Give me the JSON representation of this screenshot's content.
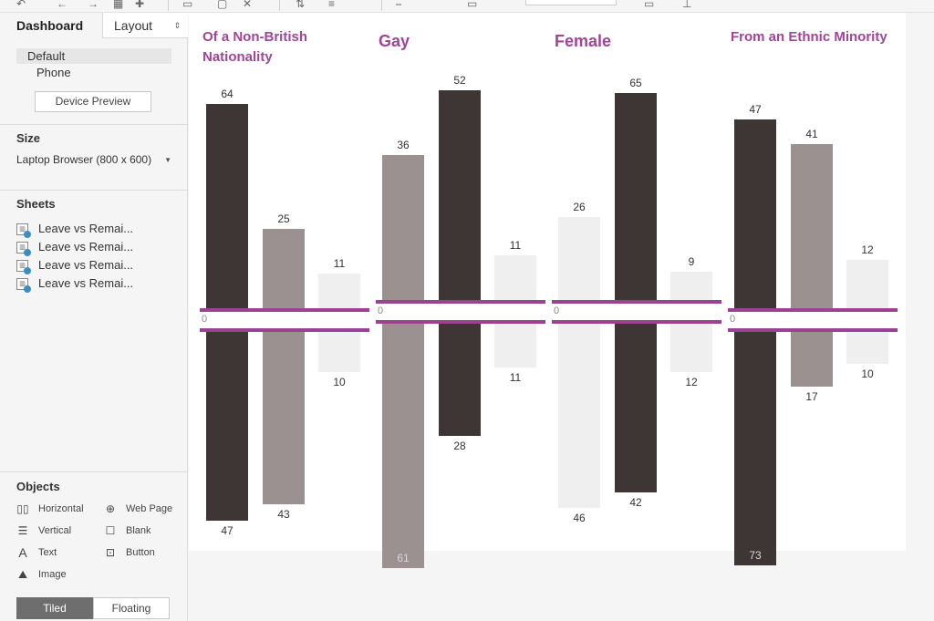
{
  "sidebar": {
    "tabs": {
      "dashboard": "Dashboard",
      "layout": "Layout"
    },
    "devices": {
      "default": "Default",
      "phone": "Phone",
      "preview_button": "Device Preview"
    },
    "size": {
      "title": "Size",
      "value": "Laptop Browser (800 x 600)"
    },
    "sheets": {
      "title": "Sheets",
      "items": [
        {
          "label": "Leave vs Remai..."
        },
        {
          "label": "Leave vs Remai..."
        },
        {
          "label": "Leave vs Remai..."
        },
        {
          "label": "Leave vs Remai..."
        }
      ]
    },
    "objects": {
      "title": "Objects",
      "items": [
        {
          "label": "Horizontal",
          "icon": "horizontal-container-icon"
        },
        {
          "label": "Web Page",
          "icon": "globe-icon"
        },
        {
          "label": "Vertical",
          "icon": "vertical-container-icon"
        },
        {
          "label": "Blank",
          "icon": "blank-icon"
        },
        {
          "label": "Text",
          "icon": "text-icon"
        },
        {
          "label": "Button",
          "icon": "button-icon"
        },
        {
          "label": "Image",
          "icon": "image-icon"
        }
      ]
    },
    "mode": {
      "tiled": "Tiled",
      "floating": "Floating"
    }
  },
  "colors": {
    "accent": "#9b4293",
    "title": "#a04597",
    "dark": "#3d3635",
    "mid": "#9a9190",
    "light": "#efefef"
  },
  "chart_data": [
    {
      "type": "bar",
      "title": "Of a Non-British Nationality",
      "zero_label": "0",
      "bars": [
        {
          "shade": "dark",
          "up": 64,
          "down": 47
        },
        {
          "shade": "mid",
          "up": 25,
          "down": 43
        },
        {
          "shade": "light",
          "up": 11,
          "down": 10
        }
      ]
    },
    {
      "type": "bar",
      "title": "Gay",
      "zero_label": "0",
      "bars": [
        {
          "shade": "mid",
          "up": 36,
          "down": 61
        },
        {
          "shade": "dark",
          "up": 52,
          "down": 28
        },
        {
          "shade": "light",
          "up": 11,
          "down": 11
        }
      ]
    },
    {
      "type": "bar",
      "title": "Female",
      "zero_label": "0",
      "bars": [
        {
          "shade": "light",
          "up": 26,
          "down": 46
        },
        {
          "shade": "dark",
          "up": 65,
          "down": 42
        },
        {
          "shade": "light",
          "up": 9,
          "down": 12
        }
      ]
    },
    {
      "type": "bar",
      "title": "From an Ethnic Minority",
      "zero_label": "0",
      "bars": [
        {
          "shade": "dark",
          "up": 47,
          "down": 73
        },
        {
          "shade": "mid",
          "up": 41,
          "down": 17
        },
        {
          "shade": "light",
          "up": 12,
          "down": 10
        }
      ]
    }
  ]
}
